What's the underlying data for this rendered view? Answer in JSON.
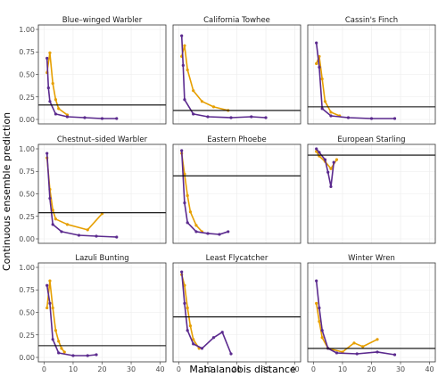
{
  "chart_data": {
    "type": "line",
    "layout": "facet-grid-3x3",
    "xlabel": "Mahalanobis distance",
    "ylabel": "Continuous ensemble prediction",
    "xlim": [
      0,
      40
    ],
    "ylim": [
      0,
      1
    ],
    "x_ticks": [
      0,
      10,
      20,
      30,
      40
    ],
    "y_ticks": [
      0.0,
      0.25,
      0.5,
      0.75,
      1.0
    ],
    "y_tick_labels": [
      "0.00",
      "0.25",
      "0.50",
      "0.75",
      "1.00"
    ],
    "grid": true,
    "colors": {
      "series_a": "#5b2a8e",
      "series_b": "#e69f00",
      "threshold": "#000000"
    },
    "panels": [
      {
        "title": "Blue–winged Warbler",
        "threshold": 0.16,
        "orange": [
          [
            1,
            0.52
          ],
          [
            2,
            0.74
          ],
          [
            3,
            0.4
          ],
          [
            4,
            0.22
          ],
          [
            5,
            0.12
          ],
          [
            8,
            0.05
          ]
        ],
        "purple": [
          [
            1,
            0.68
          ],
          [
            1.5,
            0.35
          ],
          [
            2,
            0.2
          ],
          [
            4,
            0.06
          ],
          [
            8,
            0.03
          ],
          [
            14,
            0.02
          ],
          [
            20,
            0.01
          ],
          [
            25,
            0.01
          ]
        ]
      },
      {
        "title": "California Towhee",
        "threshold": 0.1,
        "orange": [
          [
            1,
            0.7
          ],
          [
            2,
            0.82
          ],
          [
            3,
            0.55
          ],
          [
            5,
            0.32
          ],
          [
            8,
            0.2
          ],
          [
            12,
            0.14
          ],
          [
            17,
            0.1
          ]
        ],
        "purple": [
          [
            1,
            0.93
          ],
          [
            1.5,
            0.6
          ],
          [
            2,
            0.22
          ],
          [
            5,
            0.06
          ],
          [
            10,
            0.03
          ],
          [
            18,
            0.02
          ],
          [
            25,
            0.03
          ],
          [
            30,
            0.02
          ]
        ]
      },
      {
        "title": "Cassin's Finch",
        "threshold": 0.14,
        "orange": [
          [
            1,
            0.62
          ],
          [
            2,
            0.7
          ],
          [
            3,
            0.45
          ],
          [
            4,
            0.2
          ],
          [
            6,
            0.08
          ],
          [
            9,
            0.04
          ]
        ],
        "purple": [
          [
            1,
            0.85
          ],
          [
            2,
            0.58
          ],
          [
            3,
            0.12
          ],
          [
            6,
            0.04
          ],
          [
            12,
            0.02
          ],
          [
            20,
            0.01
          ],
          [
            28,
            0.01
          ]
        ]
      },
      {
        "title": "Chestnut–sided Warbler",
        "threshold": 0.29,
        "orange": [
          [
            1,
            0.9
          ],
          [
            2,
            0.55
          ],
          [
            3,
            0.32
          ],
          [
            4,
            0.22
          ],
          [
            8,
            0.16
          ],
          [
            15,
            0.1
          ],
          [
            20,
            0.28
          ]
        ],
        "purple": [
          [
            1,
            0.95
          ],
          [
            2,
            0.45
          ],
          [
            3,
            0.16
          ],
          [
            6,
            0.08
          ],
          [
            12,
            0.04
          ],
          [
            18,
            0.03
          ],
          [
            25,
            0.02
          ]
        ]
      },
      {
        "title": "Eastern Phoebe",
        "threshold": 0.7,
        "orange": [
          [
            1,
            0.95
          ],
          [
            2,
            0.72
          ],
          [
            3,
            0.48
          ],
          [
            4,
            0.3
          ],
          [
            6,
            0.15
          ],
          [
            8,
            0.08
          ]
        ],
        "purple": [
          [
            1,
            0.98
          ],
          [
            2,
            0.4
          ],
          [
            3,
            0.18
          ],
          [
            6,
            0.08
          ],
          [
            10,
            0.06
          ],
          [
            14,
            0.05
          ],
          [
            17,
            0.08
          ]
        ]
      },
      {
        "title": "European Starling",
        "threshold": 0.93,
        "orange": [
          [
            1,
            0.97
          ],
          [
            2,
            0.92
          ],
          [
            4,
            0.86
          ],
          [
            6,
            0.78
          ],
          [
            8,
            0.88
          ]
        ],
        "purple": [
          [
            1,
            1.0
          ],
          [
            2,
            0.96
          ],
          [
            4,
            0.88
          ],
          [
            5,
            0.74
          ],
          [
            6,
            0.58
          ],
          [
            7,
            0.85
          ]
        ]
      },
      {
        "title": "Lazuli Bunting",
        "threshold": 0.13,
        "orange": [
          [
            1,
            0.55
          ],
          [
            2,
            0.85
          ],
          [
            3,
            0.55
          ],
          [
            4,
            0.3
          ],
          [
            5,
            0.18
          ],
          [
            6,
            0.1
          ],
          [
            7,
            0.06
          ]
        ],
        "purple": [
          [
            1,
            0.8
          ],
          [
            2,
            0.6
          ],
          [
            3,
            0.2
          ],
          [
            5,
            0.05
          ],
          [
            10,
            0.02
          ],
          [
            15,
            0.02
          ],
          [
            18,
            0.03
          ]
        ]
      },
      {
        "title": "Least Flycatcher",
        "threshold": 0.45,
        "orange": [
          [
            1,
            0.92
          ],
          [
            2,
            0.8
          ],
          [
            3,
            0.55
          ],
          [
            4,
            0.35
          ],
          [
            5,
            0.2
          ],
          [
            7,
            0.1
          ]
        ],
        "purple": [
          [
            1,
            0.95
          ],
          [
            2,
            0.6
          ],
          [
            3,
            0.3
          ],
          [
            5,
            0.15
          ],
          [
            8,
            0.1
          ],
          [
            12,
            0.22
          ],
          [
            15,
            0.28
          ],
          [
            18,
            0.04
          ]
        ]
      },
      {
        "title": "Winter Wren",
        "threshold": 0.1,
        "orange": [
          [
            1,
            0.6
          ],
          [
            2,
            0.4
          ],
          [
            3,
            0.22
          ],
          [
            5,
            0.1
          ],
          [
            10,
            0.06
          ],
          [
            14,
            0.16
          ],
          [
            17,
            0.12
          ],
          [
            22,
            0.2
          ]
        ],
        "purple": [
          [
            1,
            0.85
          ],
          [
            2,
            0.55
          ],
          [
            3,
            0.3
          ],
          [
            5,
            0.1
          ],
          [
            8,
            0.05
          ],
          [
            15,
            0.04
          ],
          [
            22,
            0.06
          ],
          [
            28,
            0.03
          ]
        ]
      }
    ]
  }
}
